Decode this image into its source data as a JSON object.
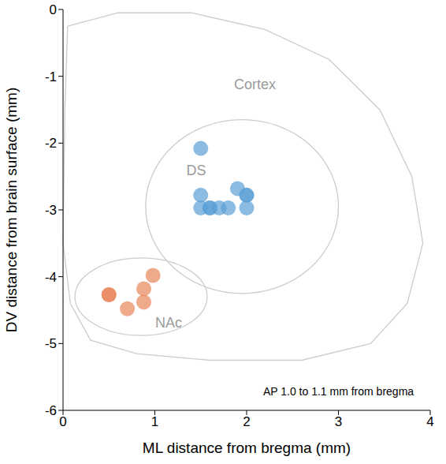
{
  "chart_data": {
    "type": "scatter",
    "x_label": "ML distance from bregma (mm)",
    "y_label": "DV distance from brain surface (mm)",
    "xlim": [
      0,
      4
    ],
    "ylim": [
      -6,
      0
    ],
    "xticks": [
      0,
      1,
      2,
      3,
      4
    ],
    "yticks": [
      -6,
      -5,
      -4,
      -3,
      -2,
      -1,
      0
    ],
    "series": [
      {
        "color": "#5b9fd6",
        "marker": "circle",
        "x": [
          1.5,
          1.5,
          1.5,
          1.6,
          1.6,
          1.7,
          1.8,
          1.9,
          2.0,
          2.0,
          2.0
        ],
        "y": [
          -2.08,
          -2.78,
          -2.97,
          -2.97,
          -2.97,
          -2.97,
          -2.97,
          -2.68,
          -2.78,
          -2.78,
          -2.97
        ]
      },
      {
        "color": "#e8845a",
        "marker": "circle",
        "x": [
          0.5,
          0.5,
          0.7,
          0.88,
          0.88,
          0.98
        ],
        "y": [
          -4.27,
          -4.27,
          -4.48,
          -4.38,
          -4.18,
          -3.98
        ]
      }
    ],
    "annotations": [
      {
        "text": "Cortex",
        "x": 2.09,
        "y": -1.12
      },
      {
        "text": "DS",
        "x": 1.45,
        "y": -2.41
      },
      {
        "text": "NAc",
        "x": 1.15,
        "y": -4.69
      },
      {
        "text": "AP 1.0 to 1.1 mm from bregma",
        "x": 3.0,
        "y": -5.72
      }
    ]
  }
}
